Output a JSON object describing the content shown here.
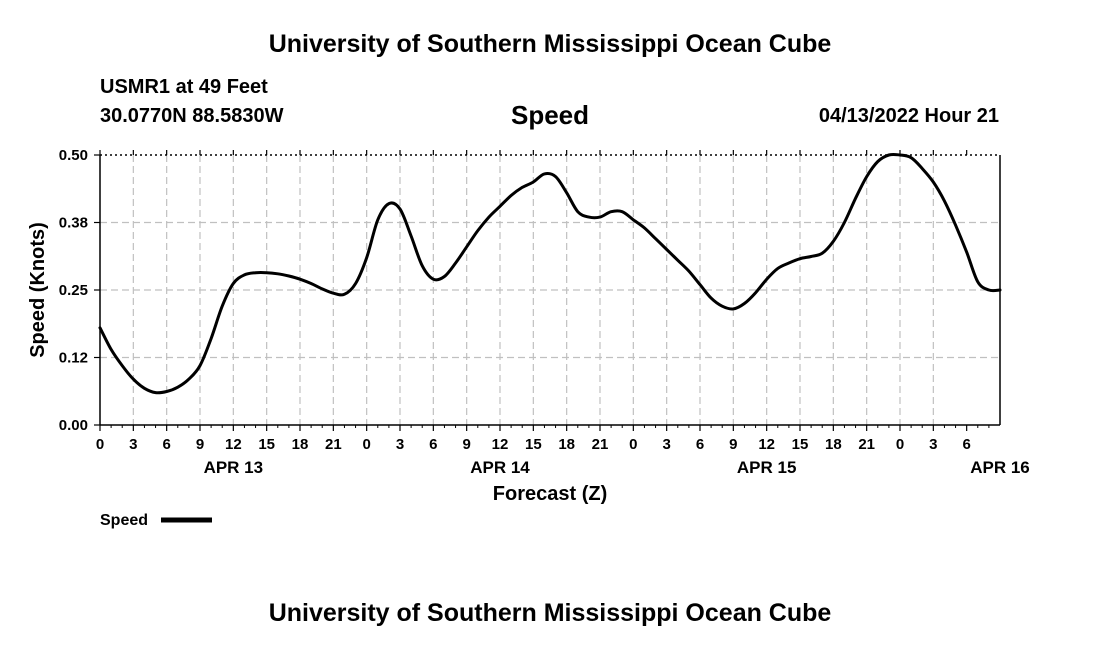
{
  "header": {
    "title": "University of Southern Mississippi Ocean Cube",
    "station": "USMR1 at 49 Feet",
    "coords": "30.0770N  88.5830W",
    "chart_name": "Speed",
    "datetime": "04/13/2022 Hour 21"
  },
  "footer": {
    "title": "University of Southern Mississippi Ocean Cube"
  },
  "colors": {
    "line": "#000000",
    "grid": "#c0c0c0",
    "axis": "#000000"
  },
  "chart_data": {
    "type": "line",
    "title": "Speed",
    "xlabel": "Forecast (Z)",
    "ylabel": "Speed (Knots)",
    "ylim": [
      0,
      0.5
    ],
    "yticks": [
      "0.00",
      "0.12",
      "0.25",
      "0.38",
      "0.50"
    ],
    "xlim": [
      0,
      81
    ],
    "xtick_step": 3,
    "xtick_labels": [
      "0",
      "3",
      "6",
      "9",
      "12",
      "15",
      "18",
      "21",
      "0",
      "3",
      "6",
      "9",
      "12",
      "15",
      "18",
      "21",
      "0",
      "3",
      "6",
      "9",
      "12",
      "15",
      "18",
      "21",
      "0",
      "3",
      "6"
    ],
    "date_labels": [
      {
        "label": "APR 13",
        "hour_index": 12
      },
      {
        "label": "APR 14",
        "hour_index": 36
      },
      {
        "label": "APR 15",
        "hour_index": 60
      },
      {
        "label": "APR 16",
        "hour_index": 81
      }
    ],
    "grid": true,
    "legend": {
      "position": "bottom-left",
      "entries": [
        "Speed"
      ]
    },
    "series": [
      {
        "name": "Speed",
        "x": [
          0,
          1,
          2,
          3,
          4,
          5,
          6,
          7,
          8,
          9,
          10,
          11,
          12,
          13,
          14,
          15,
          16,
          17,
          18,
          19,
          20,
          21,
          22,
          23,
          24,
          25,
          26,
          27,
          28,
          29,
          30,
          31,
          32,
          33,
          34,
          35,
          36,
          37,
          38,
          39,
          40,
          41,
          42,
          43,
          44,
          45,
          46,
          47,
          48,
          49,
          50,
          51,
          52,
          53,
          54,
          55,
          56,
          57,
          58,
          59,
          60,
          61,
          62,
          63,
          64,
          65,
          66,
          67,
          68,
          69,
          70,
          71,
          72,
          73,
          74,
          75,
          76,
          77,
          78,
          79,
          80,
          81
        ],
        "values": [
          0.18,
          0.14,
          0.11,
          0.085,
          0.068,
          0.06,
          0.062,
          0.07,
          0.085,
          0.11,
          0.16,
          0.22,
          0.262,
          0.278,
          0.282,
          0.282,
          0.28,
          0.276,
          0.27,
          0.262,
          0.252,
          0.244,
          0.242,
          0.262,
          0.31,
          0.38,
          0.41,
          0.4,
          0.35,
          0.295,
          0.27,
          0.275,
          0.3,
          0.33,
          0.36,
          0.385,
          0.405,
          0.425,
          0.44,
          0.45,
          0.465,
          0.46,
          0.43,
          0.395,
          0.385,
          0.385,
          0.395,
          0.395,
          0.38,
          0.365,
          0.345,
          0.325,
          0.305,
          0.285,
          0.26,
          0.235,
          0.22,
          0.215,
          0.225,
          0.245,
          0.27,
          0.29,
          0.3,
          0.308,
          0.312,
          0.318,
          0.34,
          0.375,
          0.42,
          0.46,
          0.488,
          0.5,
          0.5,
          0.495,
          0.475,
          0.45,
          0.415,
          0.37,
          0.32,
          0.265,
          0.25,
          0.25
        ]
      }
    ]
  }
}
